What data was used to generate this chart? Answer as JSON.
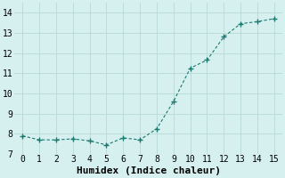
{
  "x": [
    0,
    1,
    2,
    3,
    4,
    5,
    6,
    7,
    8,
    9,
    10,
    11,
    12,
    13,
    14,
    15
  ],
  "y": [
    7.9,
    7.7,
    7.7,
    7.75,
    7.65,
    7.45,
    7.8,
    7.7,
    8.25,
    9.6,
    11.25,
    11.65,
    12.8,
    13.45,
    13.55,
    13.7
  ],
  "line_color": "#1a7a6e",
  "marker": "+",
  "marker_size": 4,
  "bg_color": "#d6f0f0",
  "grid_color": "#b8d8d8",
  "xlabel": "Humidex (Indice chaleur)",
  "xlim": [
    -0.5,
    15.5
  ],
  "ylim": [
    7.0,
    14.5
  ],
  "yticks": [
    7,
    8,
    9,
    10,
    11,
    12,
    13,
    14
  ],
  "xticks": [
    0,
    1,
    2,
    3,
    4,
    5,
    6,
    7,
    8,
    9,
    10,
    11,
    12,
    13,
    14,
    15
  ],
  "axis_fontsize": 7,
  "tick_fontsize": 7,
  "xlabel_fontsize": 8
}
